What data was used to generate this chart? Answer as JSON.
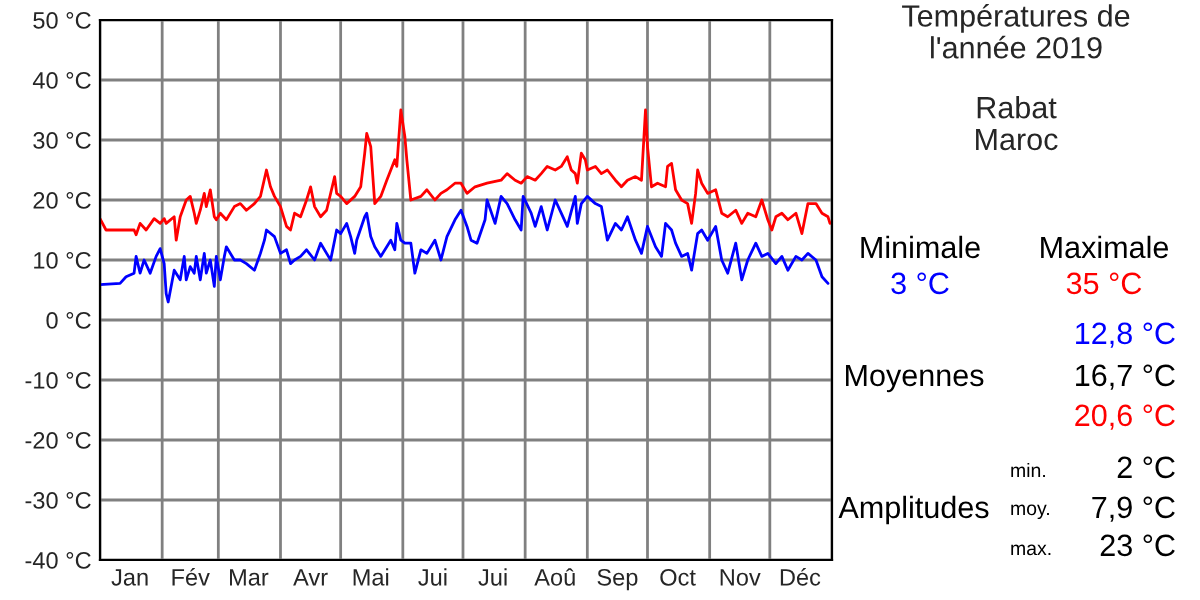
{
  "chart_data": {
    "type": "line",
    "title": "Températures de\nl'année 2019",
    "subtitle": "Rabat\nMaroc",
    "annotations": [
      "Minimale",
      "Maximale",
      "3 °C",
      "35 °C",
      "12,8 °C",
      "Moyennes",
      "16,7 °C",
      "20,6 °C",
      "Amplitudes",
      "min.",
      "2 °C",
      "moy.",
      "7,9 °C",
      "max.",
      "23 °C"
    ],
    "xlim": [
      "2019-01-01",
      "2020-01-01"
    ],
    "ylim": [
      -40,
      50
    ],
    "xticks": [
      {
        "value": "2019-01-01",
        "label": null
      },
      {
        "value": "2019-01-16",
        "label": "Jan"
      },
      {
        "value": "2019-02-01",
        "label": null
      },
      {
        "value": "2019-02-15",
        "label": "Fév"
      },
      {
        "value": "2019-03-01",
        "label": null
      },
      {
        "value": "2019-03-16",
        "label": "Mar"
      },
      {
        "value": "2019-04-01",
        "label": null
      },
      {
        "value": "2019-04-16",
        "label": "Avr"
      },
      {
        "value": "2019-05-01",
        "label": null
      },
      {
        "value": "2019-05-16",
        "label": "Mai"
      },
      {
        "value": "2019-06-01",
        "label": null
      },
      {
        "value": "2019-06-16",
        "label": "Jui"
      },
      {
        "value": "2019-07-01",
        "label": null
      },
      {
        "value": "2019-07-16",
        "label": "Jui"
      },
      {
        "value": "2019-08-01",
        "label": null
      },
      {
        "value": "2019-08-16",
        "label": "Aoû"
      },
      {
        "value": "2019-09-01",
        "label": null
      },
      {
        "value": "2019-09-16",
        "label": "Sep"
      },
      {
        "value": "2019-10-01",
        "label": null
      },
      {
        "value": "2019-10-16",
        "label": "Oct"
      },
      {
        "value": "2019-11-01",
        "label": null
      },
      {
        "value": "2019-11-16",
        "label": "Nov"
      },
      {
        "value": "2019-12-01",
        "label": null
      },
      {
        "value": "2019-12-16",
        "label": "Déc"
      },
      {
        "value": "2020-01-01",
        "label": null
      }
    ],
    "yticks": [
      {
        "value": -40,
        "label": "-40 °C"
      },
      {
        "value": -30,
        "label": "-30 °C"
      },
      {
        "value": -20,
        "label": "-20 °C"
      },
      {
        "value": -10,
        "label": "-10 °C"
      },
      {
        "value": 0,
        "label": "0 °C"
      },
      {
        "value": 10,
        "label": "10 °C"
      },
      {
        "value": 20,
        "label": "20 °C"
      },
      {
        "value": 30,
        "label": "30 °C"
      },
      {
        "value": 40,
        "label": "40 °C"
      },
      {
        "value": 50,
        "label": "50 °C"
      }
    ],
    "grid": true,
    "marker": "none",
    "line_style": "solid",
    "series": [
      {
        "color": "#ff0000",
        "x": [
          "2019-01-01",
          "2019-01-04",
          "2019-01-18",
          "2019-01-19",
          "2019-01-21",
          "2019-01-24",
          "2019-01-28",
          "2019-01-31",
          "2019-02-02",
          "2019-02-03",
          "2019-02-07",
          "2019-02-08",
          "2019-02-10",
          "2019-02-13",
          "2019-02-15",
          "2019-02-17",
          "2019-02-18",
          "2019-02-20",
          "2019-02-22",
          "2019-02-23",
          "2019-02-25",
          "2019-02-27",
          "2019-02-28",
          "2019-03-02",
          "2019-03-05",
          "2019-03-09",
          "2019-03-12",
          "2019-03-15",
          "2019-03-19",
          "2019-03-22",
          "2019-03-25",
          "2019-03-27",
          "2019-03-29",
          "2019-04-01",
          "2019-04-04",
          "2019-04-06",
          "2019-04-08",
          "2019-04-11",
          "2019-04-14",
          "2019-04-16",
          "2019-04-18",
          "2019-04-21",
          "2019-04-24",
          "2019-04-28",
          "2019-04-29",
          "2019-05-01",
          "2019-05-04",
          "2019-05-08",
          "2019-05-11",
          "2019-05-13",
          "2019-05-14",
          "2019-05-16",
          "2019-05-18",
          "2019-05-21",
          "2019-05-24",
          "2019-05-28",
          "2019-05-29",
          "2019-05-31",
          "2019-06-02",
          "2019-06-03",
          "2019-06-05",
          "2019-06-10",
          "2019-06-13",
          "2019-06-17",
          "2019-06-20",
          "2019-06-23",
          "2019-06-27",
          "2019-06-30",
          "2019-07-03",
          "2019-07-07",
          "2019-07-13",
          "2019-07-20",
          "2019-07-23",
          "2019-07-27",
          "2019-07-30",
          "2019-08-02",
          "2019-08-06",
          "2019-08-09",
          "2019-08-12",
          "2019-08-16",
          "2019-08-19",
          "2019-08-22",
          "2019-08-24",
          "2019-08-26",
          "2019-08-27",
          "2019-08-29",
          "2019-08-31",
          "2019-09-01",
          "2019-09-05",
          "2019-09-08",
          "2019-09-11",
          "2019-09-15",
          "2019-09-18",
          "2019-09-21",
          "2019-09-25",
          "2019-09-28",
          "2019-09-30",
          "2019-10-01",
          "2019-10-03",
          "2019-10-06",
          "2019-10-10",
          "2019-10-11",
          "2019-10-13",
          "2019-10-15",
          "2019-10-18",
          "2019-10-21",
          "2019-10-23",
          "2019-10-25",
          "2019-10-26",
          "2019-10-28",
          "2019-10-31",
          "2019-11-04",
          "2019-11-07",
          "2019-11-10",
          "2019-11-14",
          "2019-11-17",
          "2019-11-20",
          "2019-11-24",
          "2019-11-27",
          "2019-11-30",
          "2019-12-02",
          "2019-12-04",
          "2019-12-07",
          "2019-12-10",
          "2019-12-14",
          "2019-12-17",
          "2019-12-20",
          "2019-12-24",
          "2019-12-27",
          "2019-12-30",
          "2019-12-31"
        ],
        "values": [
          16.9,
          15,
          15,
          14.2,
          16.1,
          15,
          16.9,
          16.1,
          16.9,
          16.1,
          17.2,
          13.3,
          17.2,
          20,
          20.6,
          17.8,
          16.1,
          18.3,
          21.1,
          18.9,
          21.7,
          17.2,
          16.7,
          17.8,
          16.7,
          18.9,
          19.4,
          18.3,
          19.4,
          20.6,
          25,
          22.2,
          20.6,
          18.9,
          15.6,
          15,
          17.8,
          17.2,
          20,
          22.2,
          18.9,
          17.2,
          18.3,
          23.9,
          21.1,
          20.6,
          19.4,
          20.6,
          22.2,
          27.8,
          31.1,
          28.9,
          19.4,
          20.6,
          23.3,
          26.7,
          25.6,
          35,
          30.6,
          26.7,
          20,
          20.6,
          21.7,
          20,
          21.1,
          21.7,
          22.8,
          22.8,
          21.1,
          22.2,
          22.8,
          23.3,
          24.4,
          23.3,
          22.8,
          23.9,
          23.3,
          24.4,
          25.6,
          25,
          25.6,
          27.2,
          25,
          24.4,
          22.8,
          27.8,
          26.7,
          25,
          25.6,
          24.4,
          25,
          23.3,
          22.2,
          23.3,
          23.9,
          23.3,
          35,
          28.9,
          22.2,
          22.8,
          22.2,
          25.6,
          26.1,
          21.7,
          20,
          19.4,
          16.1,
          21.1,
          25,
          22.8,
          21.1,
          21.7,
          17.8,
          17.2,
          18.3,
          16.1,
          17.8,
          17.2,
          20,
          16.7,
          15,
          17.2,
          17.8,
          16.7,
          17.8,
          14.4,
          19.4,
          19.4,
          17.8,
          17.2,
          16.1
        ]
      },
      {
        "color": "#0000ff",
        "x": [
          "2019-01-01",
          "2019-01-11",
          "2019-01-14",
          "2019-01-18",
          "2019-01-19",
          "2019-01-21",
          "2019-01-23",
          "2019-01-26",
          "2019-01-29",
          "2019-01-31",
          "2019-02-02",
          "2019-02-03",
          "2019-02-04",
          "2019-02-07",
          "2019-02-10",
          "2019-02-12",
          "2019-02-13",
          "2019-02-15",
          "2019-02-17",
          "2019-02-18",
          "2019-02-20",
          "2019-02-22",
          "2019-02-23",
          "2019-02-25",
          "2019-02-27",
          "2019-02-28",
          "2019-03-02",
          "2019-03-04",
          "2019-03-05",
          "2019-03-09",
          "2019-03-12",
          "2019-03-15",
          "2019-03-19",
          "2019-03-22",
          "2019-03-24",
          "2019-03-25",
          "2019-03-29",
          "2019-04-01",
          "2019-04-04",
          "2019-04-06",
          "2019-04-08",
          "2019-04-11",
          "2019-04-14",
          "2019-04-18",
          "2019-04-21",
          "2019-04-24",
          "2019-04-26",
          "2019-04-28",
          "2019-04-29",
          "2019-05-01",
          "2019-05-04",
          "2019-05-06",
          "2019-05-08",
          "2019-05-09",
          "2019-05-13",
          "2019-05-14",
          "2019-05-16",
          "2019-05-18",
          "2019-05-21",
          "2019-05-24",
          "2019-05-26",
          "2019-05-28",
          "2019-05-29",
          "2019-05-31",
          "2019-06-02",
          "2019-06-05",
          "2019-06-07",
          "2019-06-10",
          "2019-06-13",
          "2019-06-17",
          "2019-06-20",
          "2019-06-23",
          "2019-06-27",
          "2019-06-30",
          "2019-07-03",
          "2019-07-05",
          "2019-07-08",
          "2019-07-12",
          "2019-07-13",
          "2019-07-17",
          "2019-07-20",
          "2019-07-23",
          "2019-07-27",
          "2019-07-30",
          "2019-07-31",
          "2019-08-04",
          "2019-08-06",
          "2019-08-09",
          "2019-08-12",
          "2019-08-16",
          "2019-08-19",
          "2019-08-22",
          "2019-08-26",
          "2019-08-27",
          "2019-08-29",
          "2019-09-01",
          "2019-09-05",
          "2019-09-08",
          "2019-09-11",
          "2019-09-15",
          "2019-09-18",
          "2019-09-21",
          "2019-09-25",
          "2019-09-28",
          "2019-10-01",
          "2019-10-05",
          "2019-10-08",
          "2019-10-10",
          "2019-10-13",
          "2019-10-15",
          "2019-10-18",
          "2019-10-21",
          "2019-10-23",
          "2019-10-26",
          "2019-10-28",
          "2019-10-31",
          "2019-11-04",
          "2019-11-07",
          "2019-11-10",
          "2019-11-14",
          "2019-11-17",
          "2019-11-20",
          "2019-11-24",
          "2019-11-27",
          "2019-11-30",
          "2019-12-04",
          "2019-12-07",
          "2019-12-10",
          "2019-12-14",
          "2019-12-17",
          "2019-12-20",
          "2019-12-24",
          "2019-12-27",
          "2019-12-30"
        ],
        "values": [
          5.9,
          6.1,
          7.2,
          7.8,
          10.6,
          7.8,
          10,
          7.8,
          10.6,
          11.9,
          9.4,
          4.4,
          3,
          8.3,
          6.7,
          10.6,
          6.7,
          8.9,
          7.8,
          10.6,
          6.7,
          11.1,
          7.8,
          10,
          5.6,
          10.6,
          6.7,
          10.6,
          12.2,
          10,
          10,
          9.4,
          8.3,
          11.1,
          13.3,
          15,
          13.9,
          11.1,
          11.7,
          9.4,
          10,
          10.6,
          11.7,
          10,
          12.8,
          11.1,
          10,
          13.3,
          15,
          14.4,
          16.1,
          13.9,
          11.1,
          13.3,
          17.2,
          17.8,
          13.9,
          12.2,
          10.6,
          12.2,
          13.3,
          11.7,
          16.1,
          13.3,
          12.8,
          12.8,
          7.8,
          11.7,
          11.1,
          13.3,
          10,
          13.9,
          16.7,
          18.3,
          15.6,
          13.3,
          12.8,
          16.7,
          20,
          16.1,
          20.6,
          19.4,
          16.7,
          15,
          20.6,
          17.8,
          15.6,
          18.9,
          15,
          20,
          17.8,
          15.6,
          20.6,
          16.1,
          19.4,
          20.6,
          19.4,
          18.9,
          13.3,
          16.1,
          15,
          17.2,
          13.3,
          11.1,
          15.6,
          12.2,
          10.6,
          16.1,
          15,
          12.8,
          10.6,
          11.1,
          8.3,
          14.4,
          15,
          13.3,
          15.6,
          10,
          7.8,
          12.8,
          6.7,
          10,
          12.8,
          10.6,
          11.1,
          9.4,
          10.6,
          8.3,
          10.6,
          10,
          11.1,
          10,
          7.2,
          6.1
        ]
      }
    ]
  }
}
